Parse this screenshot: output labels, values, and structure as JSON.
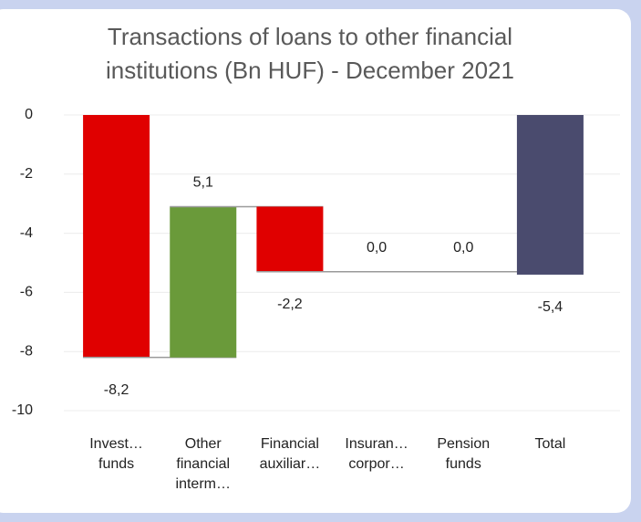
{
  "chart_data": {
    "type": "waterfall",
    "title": "Transactions of loans to other financial institutions (Bn HUF) - December 2021",
    "categories": [
      "Invest… funds",
      "Other financial interm…",
      "Financial auxiliar…",
      "Insuran… corpor…",
      "Pension funds",
      "Total"
    ],
    "values": [
      -8.2,
      5.1,
      -2.2,
      0.0,
      0.0,
      -5.4
    ],
    "value_labels": [
      "-8,2",
      "5,1",
      "-2,2",
      "0,0",
      "0,0",
      "-5,4"
    ],
    "is_total": [
      false,
      false,
      false,
      false,
      false,
      true
    ],
    "colors": {
      "increase": "#6a9a3a",
      "decrease": "#e00000",
      "total": "#4a4b6e"
    },
    "ylim": [
      -10,
      0
    ],
    "yticks": [
      0,
      -2,
      -4,
      -6,
      -8,
      -10
    ],
    "grid": true
  }
}
